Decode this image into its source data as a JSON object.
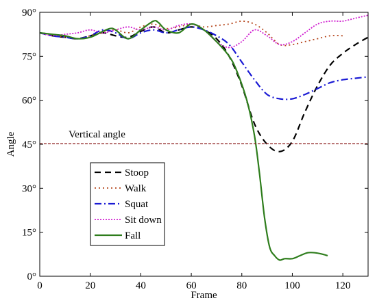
{
  "chart_data": {
    "type": "line",
    "xlabel": "Frame",
    "ylabel": "Angle",
    "xlim": [
      0,
      130
    ],
    "ylim": [
      0,
      90
    ],
    "xticks": [
      0,
      20,
      40,
      60,
      80,
      100,
      120
    ],
    "yticks": [
      0,
      15,
      30,
      45,
      60,
      75,
      90
    ],
    "ytick_labels": [
      "0°",
      "15°",
      "30°",
      "45°",
      "60°",
      "75°",
      "90°"
    ],
    "grid": false,
    "legend_position": "lower-left",
    "annotation": {
      "text": "Vertical angle",
      "y": 45.2
    },
    "series": [
      {
        "name": "Stoop",
        "color": "#000000",
        "dash": "9,6",
        "width": 2.2,
        "points": [
          [
            0,
            83
          ],
          [
            5,
            82
          ],
          [
            10,
            81.5
          ],
          [
            15,
            81
          ],
          [
            20,
            82
          ],
          [
            25,
            83
          ],
          [
            30,
            82
          ],
          [
            35,
            81.5
          ],
          [
            40,
            83.5
          ],
          [
            45,
            85
          ],
          [
            50,
            83
          ],
          [
            55,
            84
          ],
          [
            60,
            85
          ],
          [
            65,
            84
          ],
          [
            70,
            81
          ],
          [
            75,
            75
          ],
          [
            80,
            65
          ],
          [
            85,
            52
          ],
          [
            90,
            45
          ],
          [
            95,
            42.5
          ],
          [
            100,
            46
          ],
          [
            105,
            56
          ],
          [
            110,
            65
          ],
          [
            115,
            72
          ],
          [
            120,
            76
          ],
          [
            125,
            79
          ],
          [
            130,
            81.5
          ]
        ]
      },
      {
        "name": "Walk",
        "color": "#b5451b",
        "dash": "2,4",
        "width": 1.8,
        "points": [
          [
            0,
            83
          ],
          [
            5,
            82.5
          ],
          [
            10,
            81.5
          ],
          [
            15,
            81
          ],
          [
            20,
            82
          ],
          [
            25,
            83
          ],
          [
            30,
            84
          ],
          [
            35,
            83
          ],
          [
            40,
            85
          ],
          [
            45,
            86
          ],
          [
            50,
            84.5
          ],
          [
            55,
            85
          ],
          [
            60,
            86
          ],
          [
            65,
            85
          ],
          [
            70,
            85.5
          ],
          [
            75,
            86
          ],
          [
            80,
            87
          ],
          [
            85,
            86
          ],
          [
            90,
            83
          ],
          [
            95,
            79
          ],
          [
            100,
            79
          ],
          [
            105,
            80
          ],
          [
            110,
            81
          ],
          [
            115,
            82
          ],
          [
            120,
            82
          ]
        ]
      },
      {
        "name": "Squat",
        "color": "#1a1ad4",
        "dash": "10,4,2,4",
        "width": 2.2,
        "points": [
          [
            0,
            83
          ],
          [
            5,
            82
          ],
          [
            10,
            81.5
          ],
          [
            15,
            81
          ],
          [
            20,
            82
          ],
          [
            25,
            84
          ],
          [
            30,
            83
          ],
          [
            35,
            81
          ],
          [
            40,
            83
          ],
          [
            45,
            84
          ],
          [
            50,
            83
          ],
          [
            55,
            84
          ],
          [
            60,
            85
          ],
          [
            65,
            84
          ],
          [
            70,
            82
          ],
          [
            75,
            79
          ],
          [
            80,
            73
          ],
          [
            85,
            67
          ],
          [
            90,
            62
          ],
          [
            95,
            60.5
          ],
          [
            100,
            60.5
          ],
          [
            105,
            62
          ],
          [
            110,
            64
          ],
          [
            115,
            66
          ],
          [
            120,
            67
          ],
          [
            125,
            67.5
          ],
          [
            130,
            68
          ]
        ]
      },
      {
        "name": "Sit down",
        "color": "#d020d0",
        "dash": "2,2",
        "width": 1.8,
        "points": [
          [
            0,
            83
          ],
          [
            5,
            82
          ],
          [
            10,
            82.5
          ],
          [
            15,
            83
          ],
          [
            20,
            84
          ],
          [
            25,
            83
          ],
          [
            30,
            84
          ],
          [
            35,
            85
          ],
          [
            40,
            84
          ],
          [
            45,
            85
          ],
          [
            50,
            84
          ],
          [
            55,
            85.5
          ],
          [
            60,
            86
          ],
          [
            65,
            84
          ],
          [
            70,
            80
          ],
          [
            75,
            78
          ],
          [
            80,
            80
          ],
          [
            85,
            84
          ],
          [
            90,
            82
          ],
          [
            95,
            79
          ],
          [
            100,
            80
          ],
          [
            105,
            83
          ],
          [
            110,
            86
          ],
          [
            115,
            87
          ],
          [
            120,
            87
          ],
          [
            125,
            88
          ],
          [
            130,
            89
          ]
        ]
      },
      {
        "name": "Fall",
        "color": "#2e7d1c",
        "dash": "",
        "width": 2.2,
        "points": [
          [
            0,
            83
          ],
          [
            5,
            82.5
          ],
          [
            10,
            82
          ],
          [
            15,
            81
          ],
          [
            20,
            81.5
          ],
          [
            25,
            83.5
          ],
          [
            28,
            84.5
          ],
          [
            30,
            84
          ],
          [
            35,
            81
          ],
          [
            40,
            84
          ],
          [
            45,
            87
          ],
          [
            47,
            86.5
          ],
          [
            50,
            84
          ],
          [
            55,
            83
          ],
          [
            60,
            86
          ],
          [
            65,
            84
          ],
          [
            70,
            80
          ],
          [
            75,
            75
          ],
          [
            78,
            70
          ],
          [
            82,
            60
          ],
          [
            85,
            48
          ],
          [
            87,
            35
          ],
          [
            89,
            20
          ],
          [
            91,
            10
          ],
          [
            93,
            7
          ],
          [
            95,
            5.5
          ],
          [
            97,
            6
          ],
          [
            100,
            6
          ],
          [
            103,
            7
          ],
          [
            106,
            8
          ],
          [
            109,
            8
          ],
          [
            112,
            7.5
          ],
          [
            114,
            7
          ]
        ]
      }
    ]
  }
}
